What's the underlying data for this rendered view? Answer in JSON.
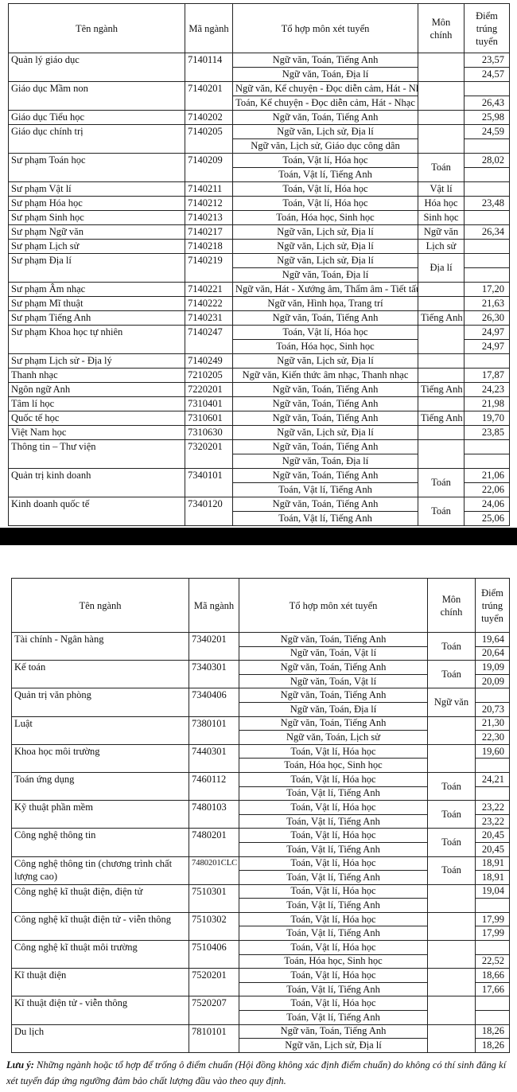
{
  "tables": [
    {
      "header": [
        "Tên ngành",
        "Mã ngành",
        "Tổ hợp môn xét tuyển",
        "Môn chính",
        "Điểm trúng tuyển"
      ],
      "rows": [
        {
          "name": "Quản lý giáo dục",
          "code": "7140114",
          "combos": [
            {
              "subject": "Ngữ văn, Toán, Tiếng Anh",
              "score": "23,57"
            },
            {
              "subject": "Ngữ văn, Toán, Địa lí",
              "score": "24,57"
            }
          ]
        },
        {
          "name": "Giáo dục Mầm non",
          "code": "7140201",
          "combos": [
            {
              "subject": "Ngữ văn, Kể chuyện - Đọc diễn cảm, Hát - Nhạc"
            },
            {
              "subject": "Toán, Kể chuyện - Đọc diễn cảm, Hát - Nhạc",
              "score": "26,43"
            }
          ]
        },
        {
          "name": "Giáo dục Tiểu học",
          "code": "7140202",
          "combos": [
            {
              "subject": "Ngữ văn, Toán, Tiếng Anh",
              "score": "25,98"
            }
          ]
        },
        {
          "name": "Giáo dục chính trị",
          "code": "7140205",
          "combos": [
            {
              "subject": "Ngữ văn, Lịch sử, Địa lí",
              "score": "24,59"
            },
            {
              "subject": "Ngữ văn, Lịch sử, Giáo dục công dân"
            }
          ]
        },
        {
          "name": "Sư phạm Toán học",
          "code": "7140209",
          "main": "Toán",
          "combos": [
            {
              "subject": "Toán, Vật lí, Hóa học",
              "score": "28,02"
            },
            {
              "subject": "Toán, Vật lí, Tiếng Anh"
            }
          ]
        },
        {
          "name": "Sư phạm Vật lí",
          "code": "7140211",
          "main": "Vật lí",
          "combos": [
            {
              "subject": "Toán, Vật lí, Hóa học"
            }
          ]
        },
        {
          "name": "Sư phạm Hóa học",
          "code": "7140212",
          "main": "Hóa học",
          "combos": [
            {
              "subject": "Toán, Vật lí, Hóa học",
              "score": "23,48"
            }
          ]
        },
        {
          "name": "Sư phạm Sinh học",
          "code": "7140213",
          "main": "Sinh học",
          "combos": [
            {
              "subject": "Toán, Hóa học, Sinh học"
            }
          ]
        },
        {
          "name": "Sư phạm Ngữ văn",
          "code": "7140217",
          "main": "Ngữ văn",
          "combos": [
            {
              "subject": "Ngữ văn, Lịch sử, Địa lí",
              "score": "26,34"
            }
          ]
        },
        {
          "name": "Sư phạm Lịch sử",
          "code": "7140218",
          "main": "Lịch sử",
          "combos": [
            {
              "subject": "Ngữ văn, Lịch sử, Địa lí"
            }
          ]
        },
        {
          "name": "Sư phạm Địa lí",
          "code": "7140219",
          "main": "Địa lí",
          "combos": [
            {
              "subject": "Ngữ văn, Lịch sử, Địa lí"
            },
            {
              "subject": "Ngữ văn, Toán, Địa lí"
            }
          ]
        },
        {
          "name": "Sư phạm Âm nhạc",
          "code": "7140221",
          "combos": [
            {
              "subject": "Ngữ văn, Hát - Xướng âm, Thẩm âm - Tiết tấu",
              "score": "17,20"
            }
          ]
        },
        {
          "name": "Sư phạm Mĩ thuật",
          "code": "7140222",
          "combos": [
            {
              "subject": "Ngữ văn, Hình họa, Trang trí",
              "score": "21,63"
            }
          ]
        },
        {
          "name": "Sư phạm Tiếng Anh",
          "code": "7140231",
          "main": "Tiếng Anh",
          "combos": [
            {
              "subject": "Ngữ văn, Toán, Tiếng Anh",
              "score": "26,30"
            }
          ]
        },
        {
          "name": "Sư phạm Khoa học tự nhiên",
          "code": "7140247",
          "combos": [
            {
              "subject": "Toán, Vật lí, Hóa học",
              "score": "24,97"
            },
            {
              "subject": "Toán, Hóa học, Sinh học",
              "score": "24,97"
            }
          ]
        },
        {
          "name": "Sư phạm Lịch sử - Địa lý",
          "code": "7140249",
          "combos": [
            {
              "subject": "Ngữ văn, Lịch sử, Địa lí"
            }
          ]
        },
        {
          "name": "Thanh nhạc",
          "code": "7210205",
          "combos": [
            {
              "subject": "Ngữ văn, Kiến thức âm nhạc, Thanh nhạc",
              "score": "17,87"
            }
          ]
        },
        {
          "name": "Ngôn ngữ Anh",
          "code": "7220201",
          "main": "Tiếng Anh",
          "combos": [
            {
              "subject": "Ngữ văn, Toán, Tiếng Anh",
              "score": "24,23"
            }
          ]
        },
        {
          "name": "Tâm lí học",
          "code": "7310401",
          "combos": [
            {
              "subject": "Ngữ văn, Toán, Tiếng Anh",
              "score": "21,98"
            }
          ]
        },
        {
          "name": "Quốc tế học",
          "code": "7310601",
          "main": "Tiếng Anh",
          "combos": [
            {
              "subject": "Ngữ văn, Toán, Tiếng Anh",
              "score": "19,70"
            }
          ]
        },
        {
          "name": "Việt Nam học",
          "code": "7310630",
          "combos": [
            {
              "subject": "Ngữ văn, Lịch sử, Địa lí",
              "score": "23,85"
            }
          ]
        },
        {
          "name": "Thông tin – Thư viện",
          "code": "7320201",
          "combos": [
            {
              "subject": "Ngữ văn, Toán, Tiếng Anh"
            },
            {
              "subject": "Ngữ văn, Toán, Địa lí"
            }
          ]
        },
        {
          "name": "Quản trị kinh doanh",
          "code": "7340101",
          "main": "Toán",
          "combos": [
            {
              "subject": "Ngữ văn, Toán, Tiếng Anh",
              "score": "21,06"
            },
            {
              "subject": "Toán, Vật lí, Tiếng Anh",
              "score": "22,06"
            }
          ]
        },
        {
          "name": "Kinh doanh quốc tế",
          "code": "7340120",
          "main": "Toán",
          "combos": [
            {
              "subject": "Ngữ văn, Toán, Tiếng Anh",
              "score": "24,06"
            },
            {
              "subject": "Toán, Vật lí, Tiếng Anh",
              "score": "25,06"
            }
          ]
        }
      ]
    },
    {
      "header": [
        "Tên ngành",
        "Mã ngành",
        "Tổ hợp môn xét tuyển",
        "Môn chính",
        "Điểm trúng tuyển"
      ],
      "rows": [
        {
          "name": "Tài chính - Ngân hàng",
          "code": "7340201",
          "main": "Toán",
          "combos": [
            {
              "subject": "Ngữ văn, Toán, Tiếng Anh",
              "score": "19,64"
            },
            {
              "subject": "Ngữ văn, Toán, Vật lí",
              "score": "20,64"
            }
          ]
        },
        {
          "name": "Kế toán",
          "code": "7340301",
          "main": "Toán",
          "combos": [
            {
              "subject": "Ngữ văn, Toán, Tiếng Anh",
              "score": "19,09"
            },
            {
              "subject": "Ngữ văn, Toán, Vật lí",
              "score": "20,09"
            }
          ]
        },
        {
          "name": "Quản trị văn phòng",
          "code": "7340406",
          "main": "Ngữ văn",
          "combos": [
            {
              "subject": "Ngữ văn, Toán, Tiếng Anh"
            },
            {
              "subject": "Ngữ văn, Toán, Địa lí",
              "score": "20,73"
            }
          ]
        },
        {
          "name": "Luật",
          "code": "7380101",
          "combos": [
            {
              "subject": "Ngữ văn, Toán, Tiếng Anh",
              "score": "21,30"
            },
            {
              "subject": "Ngữ văn, Toán, Lịch sử",
              "score": "22,30"
            }
          ]
        },
        {
          "name": "Khoa học môi trường",
          "code": "7440301",
          "combos": [
            {
              "subject": "Toán, Vật lí, Hóa học",
              "score": "19,60"
            },
            {
              "subject": "Toán, Hóa học, Sinh học"
            }
          ]
        },
        {
          "name": "Toán ứng dụng",
          "code": "7460112",
          "main": "Toán",
          "combos": [
            {
              "subject": "Toán, Vật lí, Hóa học",
              "score": "24,21"
            },
            {
              "subject": "Toán, Vật lí, Tiếng Anh"
            }
          ]
        },
        {
          "name": "Kỹ thuật phần mềm",
          "code": "7480103",
          "main": "Toán",
          "combos": [
            {
              "subject": "Toán, Vật lí, Hóa học",
              "score": "23,22"
            },
            {
              "subject": "Toán, Vật lí, Tiếng Anh",
              "score": "23,22"
            }
          ]
        },
        {
          "name": "Công nghệ thông tin",
          "code": "7480201",
          "main": "Toán",
          "combos": [
            {
              "subject": "Toán, Vật lí, Hóa học",
              "score": "20,45"
            },
            {
              "subject": "Toán, Vật lí, Tiếng Anh",
              "score": "20,45"
            }
          ]
        },
        {
          "name": "Công nghệ thông tin (chương trình chất lượng cao)",
          "code": "7480201CLC",
          "main": "Toán",
          "combos": [
            {
              "subject": "Toán, Vật lí, Hóa học",
              "score": "18,91"
            },
            {
              "subject": "Toán, Vật lí, Tiếng Anh",
              "score": "18,91"
            }
          ]
        },
        {
          "name": "Công nghệ kĩ thuật điện, điện tử",
          "code": "7510301",
          "combos": [
            {
              "subject": "Toán, Vật lí, Hóa học",
              "score": "19,04"
            },
            {
              "subject": "Toán, Vật lí, Tiếng Anh"
            }
          ]
        },
        {
          "name": "Công nghệ kĩ thuật điện tử - viễn thông",
          "code": "7510302",
          "combos": [
            {
              "subject": "Toán, Vật lí, Hóa học",
              "score": "17,99"
            },
            {
              "subject": "Toán, Vật lí, Tiếng Anh",
              "score": "17,99"
            }
          ]
        },
        {
          "name": "Công nghệ kĩ thuật môi trường",
          "code": "7510406",
          "combos": [
            {
              "subject": "Toán, Vật lí, Hóa học"
            },
            {
              "subject": "Toán, Hóa học, Sinh học",
              "score": "22,52"
            }
          ]
        },
        {
          "name": "Kĩ thuật điện",
          "code": "7520201",
          "combos": [
            {
              "subject": "Toán, Vật lí, Hóa học",
              "score": "18,66"
            },
            {
              "subject": "Toán, Vật lí, Tiếng Anh",
              "score": "17,66"
            }
          ]
        },
        {
          "name": "Kĩ thuật điện tử - viễn thông",
          "code": "7520207",
          "combos": [
            {
              "subject": "Toán, Vật lí, Hóa học"
            },
            {
              "subject": "Toán, Vật lí, Tiếng Anh"
            }
          ]
        },
        {
          "name": "Du lịch",
          "code": "7810101",
          "combos": [
            {
              "subject": "Ngữ văn, Toán, Tiếng Anh",
              "score": "18,26"
            },
            {
              "subject": "Ngữ văn, Lịch sử, Địa lí",
              "score": "18,26"
            }
          ]
        }
      ]
    }
  ],
  "note": {
    "label": "Lưu ý:",
    "text": "Những ngành hoặc tổ hợp để trống ô điểm chuẩn (Hội đồng không xác định điểm chuẩn) do không có thí sinh đăng kí xét tuyển đáp ứng ngưỡng đảm bảo chất lượng đầu vào theo quy định."
  }
}
